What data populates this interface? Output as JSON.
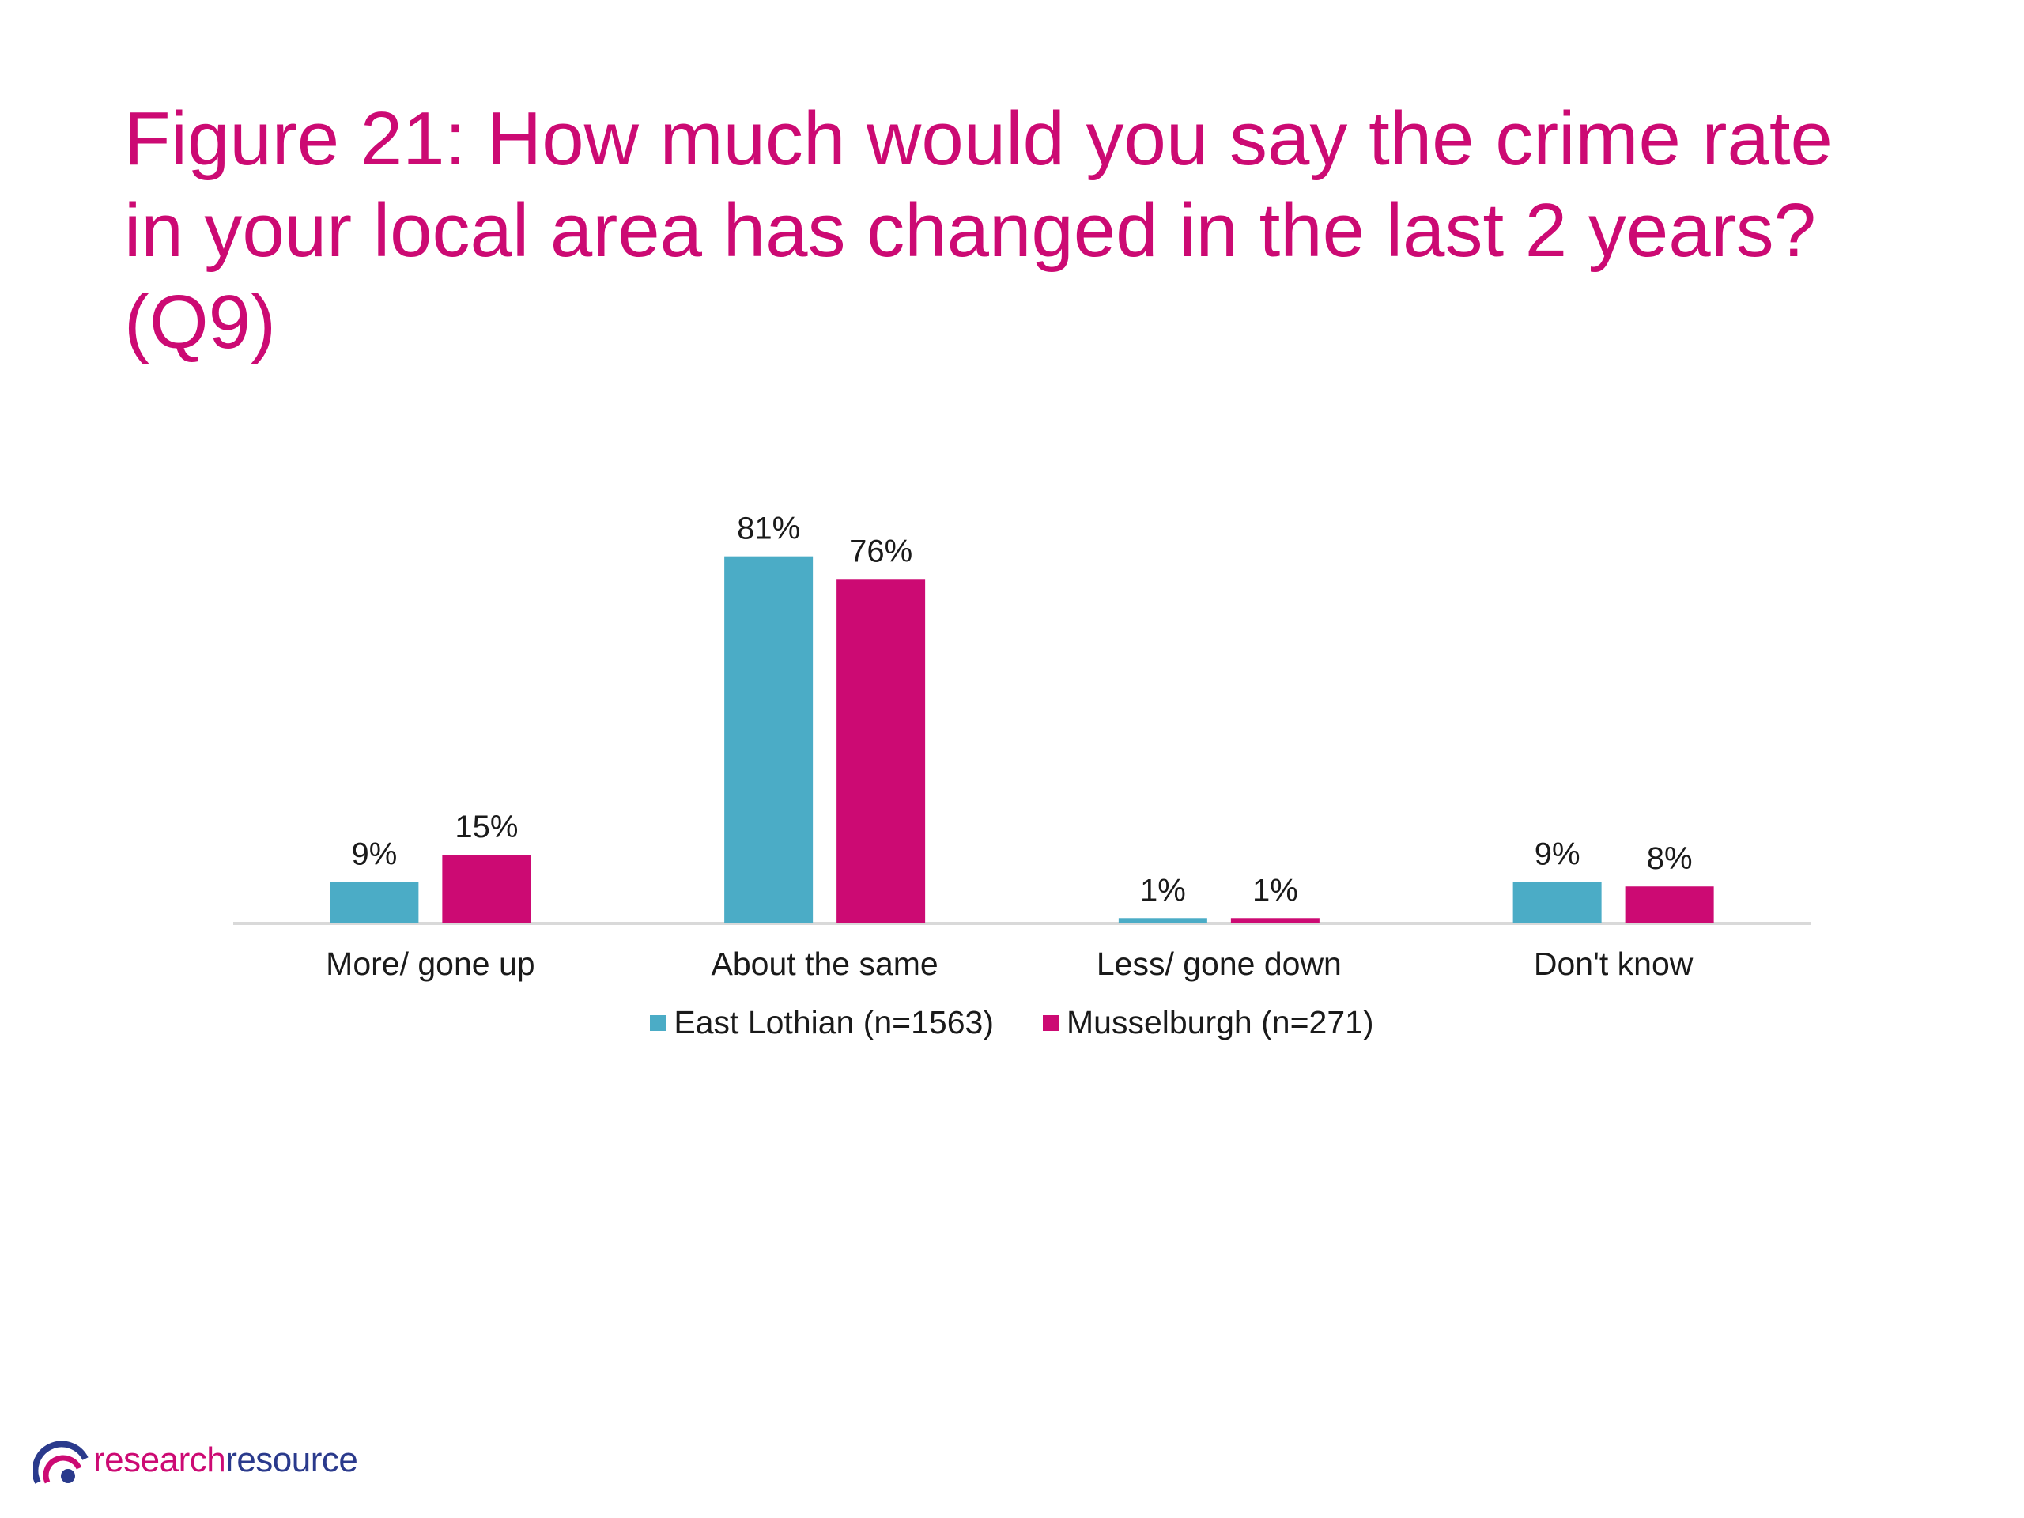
{
  "slide": {
    "title_lines": [
      "Figure 21: How much would you say the crime rate",
      "in your local area has changed in the last 2 years?",
      "(Q9)"
    ],
    "logo": {
      "part1": "research",
      "part2": "resource"
    }
  },
  "chart_data": {
    "type": "bar",
    "title": "Figure 21: How much would you say the crime rate in your local area has changed in the last 2 years? (Q9)",
    "categories": [
      "More/ gone up",
      "About the same",
      "Less/ gone down",
      "Don't know"
    ],
    "series": [
      {
        "name": "East Lothian (n=1563)",
        "values": [
          9,
          81,
          1,
          9
        ],
        "labels": [
          "9%",
          "81%",
          "1%",
          "9%"
        ],
        "color": "#4bacc6"
      },
      {
        "name": "Musselburgh (n=271)",
        "values": [
          15,
          76,
          1,
          8
        ],
        "labels": [
          "15%",
          "76%",
          "1%",
          "8%"
        ],
        "color": "#cc0a73"
      }
    ],
    "unit": "%",
    "ylim": [
      0,
      100
    ],
    "grid": false,
    "legend_position": "bottom",
    "axis_color": "#d9d9d9"
  }
}
